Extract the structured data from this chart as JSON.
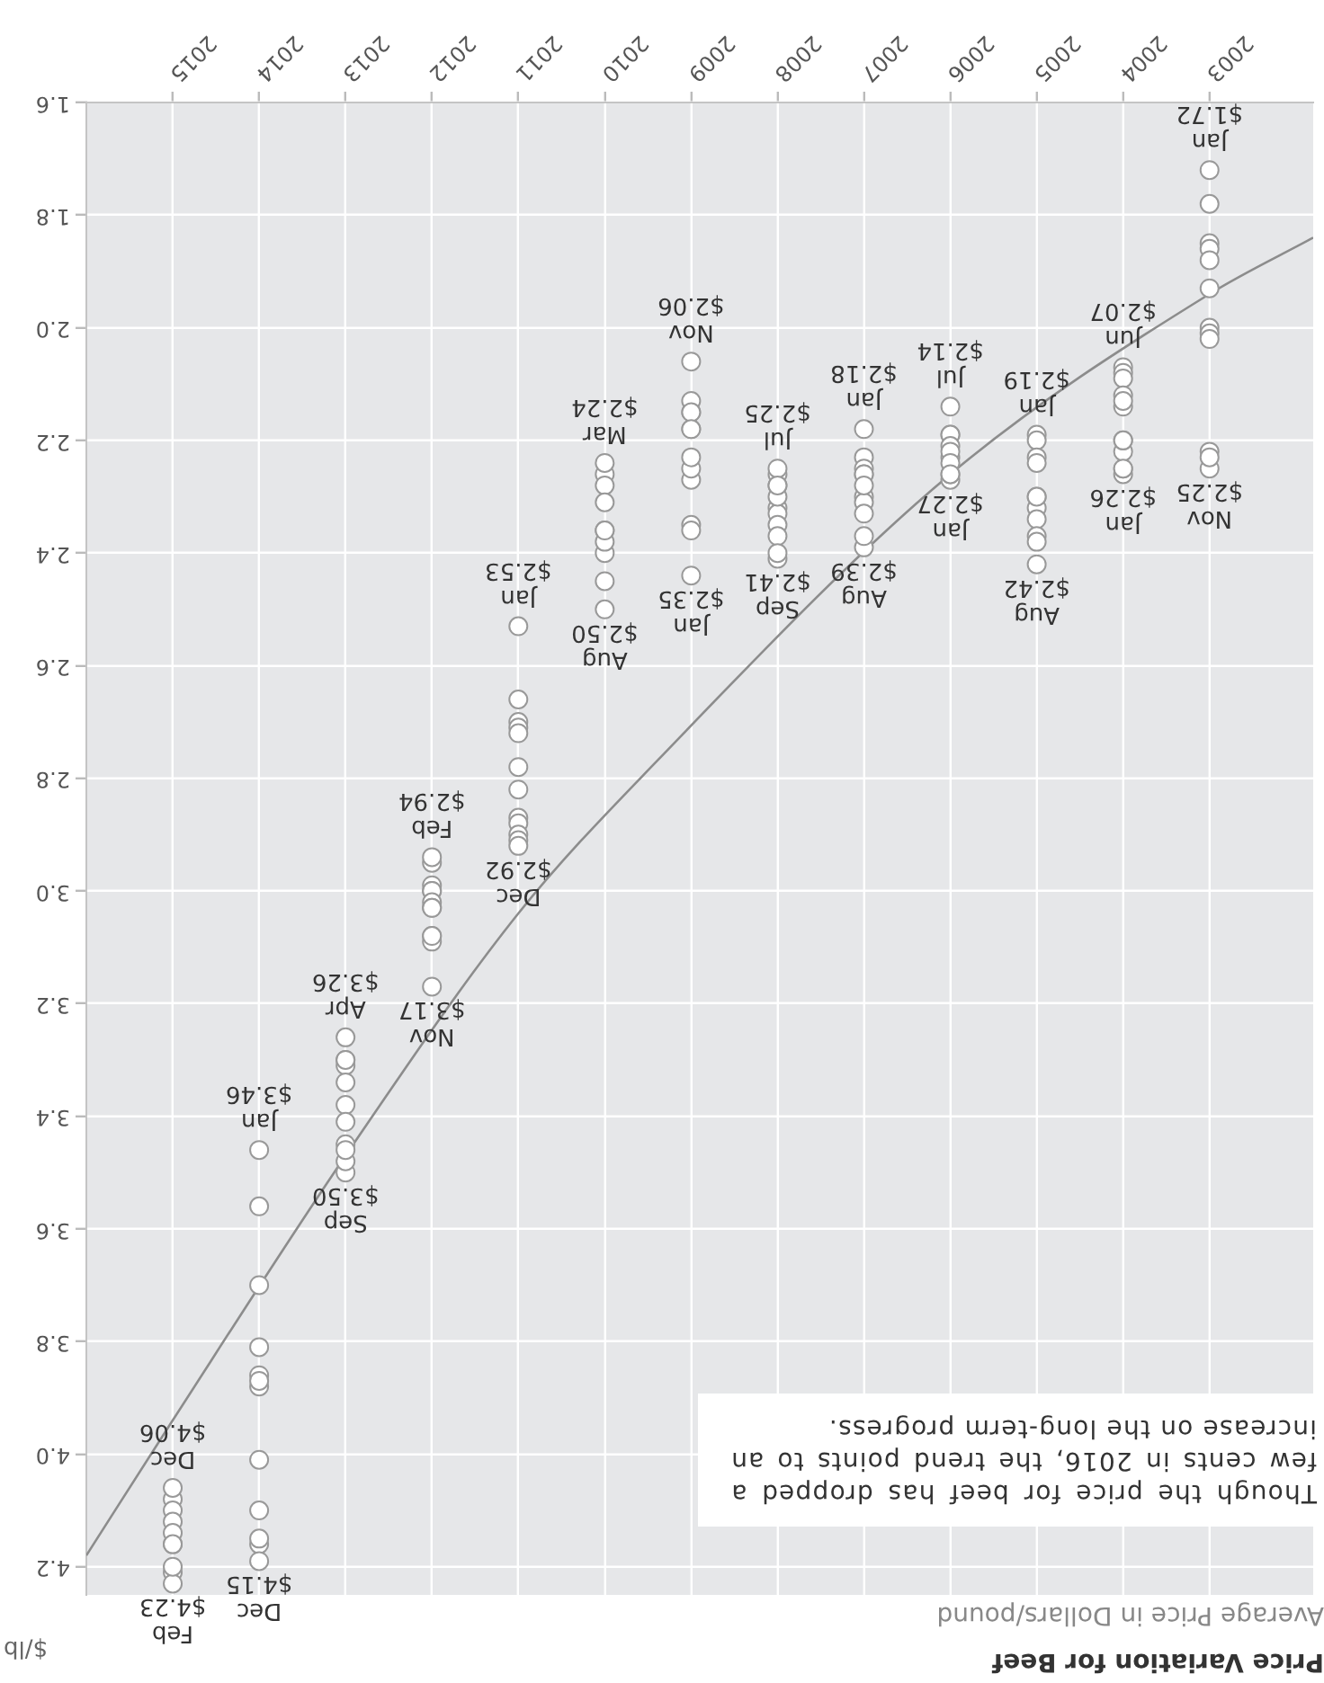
{
  "chart_data": {
    "type": "scatter",
    "title": "Price Variation for Beef",
    "subtitle": "Average Price in Dollars/pound",
    "ylabel": "$/lb",
    "xlim": [
      2016,
      2001.8
    ],
    "xticks": [
      2003,
      2004,
      2005,
      2006,
      2007,
      2008,
      2009,
      2010,
      2011,
      2012,
      2013,
      2014,
      2015
    ],
    "ylim": [
      4.25,
      1.6
    ],
    "yticks": [
      1.6,
      1.8,
      {
        "value": 2,
        "label": "2.0"
      },
      2.2,
      2.4,
      2.6,
      2.8,
      {
        "value": 3,
        "label": "3.0"
      },
      3.2,
      3.4,
      3.6,
      3.8,
      {
        "value": 4,
        "label": "4.0"
      },
      4.2
    ],
    "grid": true,
    "series": [
      {
        "type": "scatter",
        "marker": "circle",
        "color": "#999999",
        "x": [
          2003,
          2003,
          2003,
          2003,
          2003,
          2003,
          2003,
          2003,
          2003,
          2003,
          2003,
          2003,
          2004,
          2004,
          2004,
          2004,
          2004,
          2004,
          2004,
          2004,
          2004,
          2004,
          2004,
          2004,
          2005,
          2005,
          2005,
          2005,
          2005,
          2005,
          2005,
          2005,
          2005,
          2005,
          2005,
          2006,
          2006,
          2006,
          2006,
          2006,
          2006,
          2006,
          2006,
          2006,
          2006,
          2007,
          2007,
          2007,
          2007,
          2007,
          2007,
          2007,
          2007,
          2007,
          2007,
          2007,
          2008,
          2008,
          2008,
          2008,
          2008,
          2008,
          2008,
          2008,
          2008,
          2008,
          2008,
          2009,
          2009,
          2009,
          2009,
          2009,
          2009,
          2009,
          2009,
          2009,
          2009,
          2009,
          2009,
          2010,
          2010,
          2010,
          2010,
          2010,
          2010,
          2010,
          2010,
          2010,
          2010,
          2011,
          2011,
          2011,
          2011,
          2011,
          2011,
          2011,
          2011,
          2011,
          2011,
          2011,
          2011,
          2012,
          2012,
          2012,
          2012,
          2012,
          2012,
          2012,
          2012,
          2012,
          2012,
          2012,
          2012,
          2013,
          2013,
          2013,
          2013,
          2013,
          2013,
          2013,
          2013,
          2013,
          2013,
          2013,
          2014,
          2014,
          2014,
          2014,
          2014,
          2014,
          2014,
          2014,
          2014,
          2014,
          2014,
          2014,
          2015,
          2015,
          2015,
          2015,
          2015,
          2015,
          2015,
          2015,
          2015,
          2015
        ],
        "values": [
          1.72,
          1.78,
          1.85,
          1.86,
          1.88,
          1.93,
          2.0,
          2.01,
          2.02,
          2.22,
          2.25,
          2.23,
          2.26,
          2.25,
          2.22,
          2.2,
          2.14,
          2.07,
          2.08,
          2.09,
          2.12,
          2.13,
          2.2,
          2.25,
          2.19,
          2.2,
          2.23,
          2.24,
          2.3,
          2.32,
          2.42,
          2.34,
          2.37,
          2.38,
          2.3,
          2.27,
          2.26,
          2.23,
          2.19,
          2.14,
          2.19,
          2.21,
          2.22,
          2.24,
          2.26,
          2.18,
          2.23,
          2.25,
          2.26,
          2.3,
          2.31,
          2.39,
          2.37,
          2.33,
          2.26,
          2.28,
          2.26,
          2.28,
          2.32,
          2.33,
          2.35,
          2.25,
          2.37,
          2.41,
          2.4,
          2.3,
          2.28,
          2.35,
          2.44,
          2.36,
          2.27,
          2.25,
          2.23,
          2.18,
          2.15,
          2.13,
          2.15,
          2.06,
          2.18,
          2.26,
          2.28,
          2.24,
          2.31,
          2.36,
          2.5,
          2.45,
          2.4,
          2.38,
          2.36,
          2.53,
          2.66,
          2.7,
          2.71,
          2.72,
          2.78,
          2.82,
          2.87,
          2.88,
          2.9,
          2.91,
          2.92,
          2.95,
          2.94,
          2.99,
          3.0,
          3.0,
          3.02,
          3.03,
          3.08,
          3.09,
          3.08,
          3.17,
          3.03,
          3.3,
          3.31,
          3.3,
          3.26,
          3.34,
          3.38,
          3.41,
          3.45,
          3.5,
          3.48,
          3.46,
          3.46,
          3.56,
          3.7,
          3.81,
          3.86,
          3.88,
          3.87,
          4.01,
          4.1,
          4.16,
          4.19,
          4.15,
          4.21,
          4.23,
          4.2,
          4.16,
          4.08,
          4.1,
          4.12,
          4.14,
          4.16,
          4.06
        ]
      },
      {
        "type": "line",
        "color": "#8c8c8c",
        "x": [
          2001.8,
          2003,
          2006,
          2009.4,
          2011,
          2013,
          2015,
          2016
        ],
        "values": [
          1.84,
          1.94,
          2.26,
          2.77,
          3.04,
          3.47,
          3.94,
          4.18
        ]
      }
    ],
    "annotations": [
      "Though the price for beef has dropped a few cents in 2016, the trend points to an increase on the long-term progress.",
      {
        "text": "Jan\n$1.72",
        "x": 2003,
        "y": 1.72
      },
      {
        "text": "Nov\n$2.25",
        "x": 2003,
        "y": 2.25
      },
      {
        "text": "Jun\n$2.07",
        "x": 2004,
        "y": 2.07
      },
      {
        "text": "Jan\n$2.26",
        "x": 2004,
        "y": 2.26
      },
      {
        "text": "Jan\n$2.19",
        "x": 2005,
        "y": 2.19
      },
      {
        "text": "Aug\n$2.42",
        "x": 2005,
        "y": 2.42
      },
      {
        "text": "Jul\n$2.14",
        "x": 2006,
        "y": 2.14
      },
      {
        "text": "Jan\n$2.27",
        "x": 2006,
        "y": 2.27
      },
      {
        "text": "Jan\n$2.18",
        "x": 2007,
        "y": 2.18
      },
      {
        "text": "Aug\n$2.39",
        "x": 2007,
        "y": 2.39
      },
      {
        "text": "Jul\n$2.25",
        "x": 2008,
        "y": 2.25
      },
      {
        "text": "Sep\n$2.41",
        "x": 2008,
        "y": 2.41
      },
      {
        "text": "Nov\n$2.06",
        "x": 2009,
        "y": 2.06
      },
      {
        "text": "Jan\n$2.35",
        "x": 2009,
        "y": 2.35
      },
      {
        "text": "Mar\n$2.24",
        "x": 2010,
        "y": 2.24
      },
      {
        "text": "Aug\n$2.50",
        "x": 2010,
        "y": 2.5
      },
      {
        "text": "Jan\n$2.53",
        "x": 2011,
        "y": 2.53
      },
      {
        "text": "Dec\n$2.92",
        "x": 2011,
        "y": 2.92
      },
      {
        "text": "Feb\n$2.94",
        "x": 2012,
        "y": 2.94
      },
      {
        "text": "Nov\n$3.17",
        "x": 2012,
        "y": 3.17
      },
      {
        "text": "Apr\n$3.26",
        "x": 2013,
        "y": 3.26
      },
      {
        "text": "Sep\n$3.50",
        "x": 2013,
        "y": 3.5
      },
      {
        "text": "Jan\n$3.46",
        "x": 2014,
        "y": 3.46
      },
      {
        "text": "Dec\n$4.15",
        "x": 2014,
        "y": 4.15
      },
      {
        "text": "Dec\n$4.06",
        "x": 2015,
        "y": 4.06
      },
      {
        "text": "Feb\n$4.23",
        "x": 2015,
        "y": 4.23
      }
    ]
  }
}
